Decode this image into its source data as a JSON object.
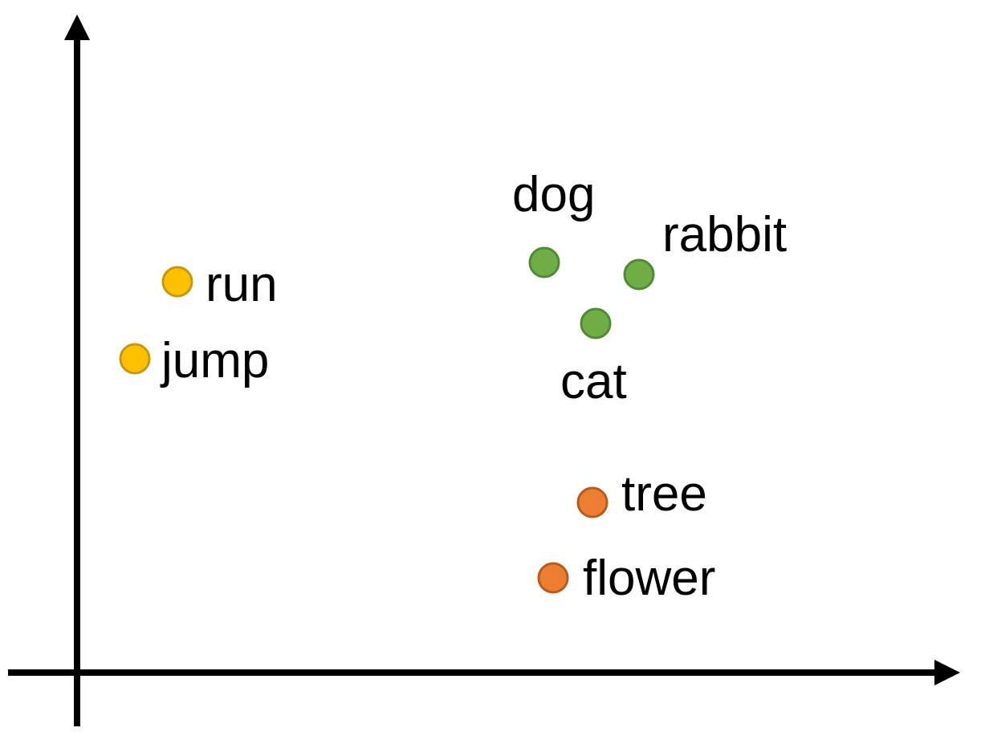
{
  "groups": {
    "actions": {
      "fill": "#FFC000",
      "stroke": "#C9960C"
    },
    "animals": {
      "fill": "#70AD47",
      "stroke": "#4E8C33"
    },
    "plants": {
      "fill": "#ED7D31",
      "stroke": "#B85A1C"
    }
  },
  "words": [
    {
      "text": "run",
      "group": "actions"
    },
    {
      "text": "jump",
      "group": "actions"
    },
    {
      "text": "dog",
      "group": "animals"
    },
    {
      "text": "rabbit",
      "group": "animals"
    },
    {
      "text": "cat",
      "group": "animals"
    },
    {
      "text": "tree",
      "group": "plants"
    },
    {
      "text": "flower",
      "group": "plants"
    }
  ]
}
